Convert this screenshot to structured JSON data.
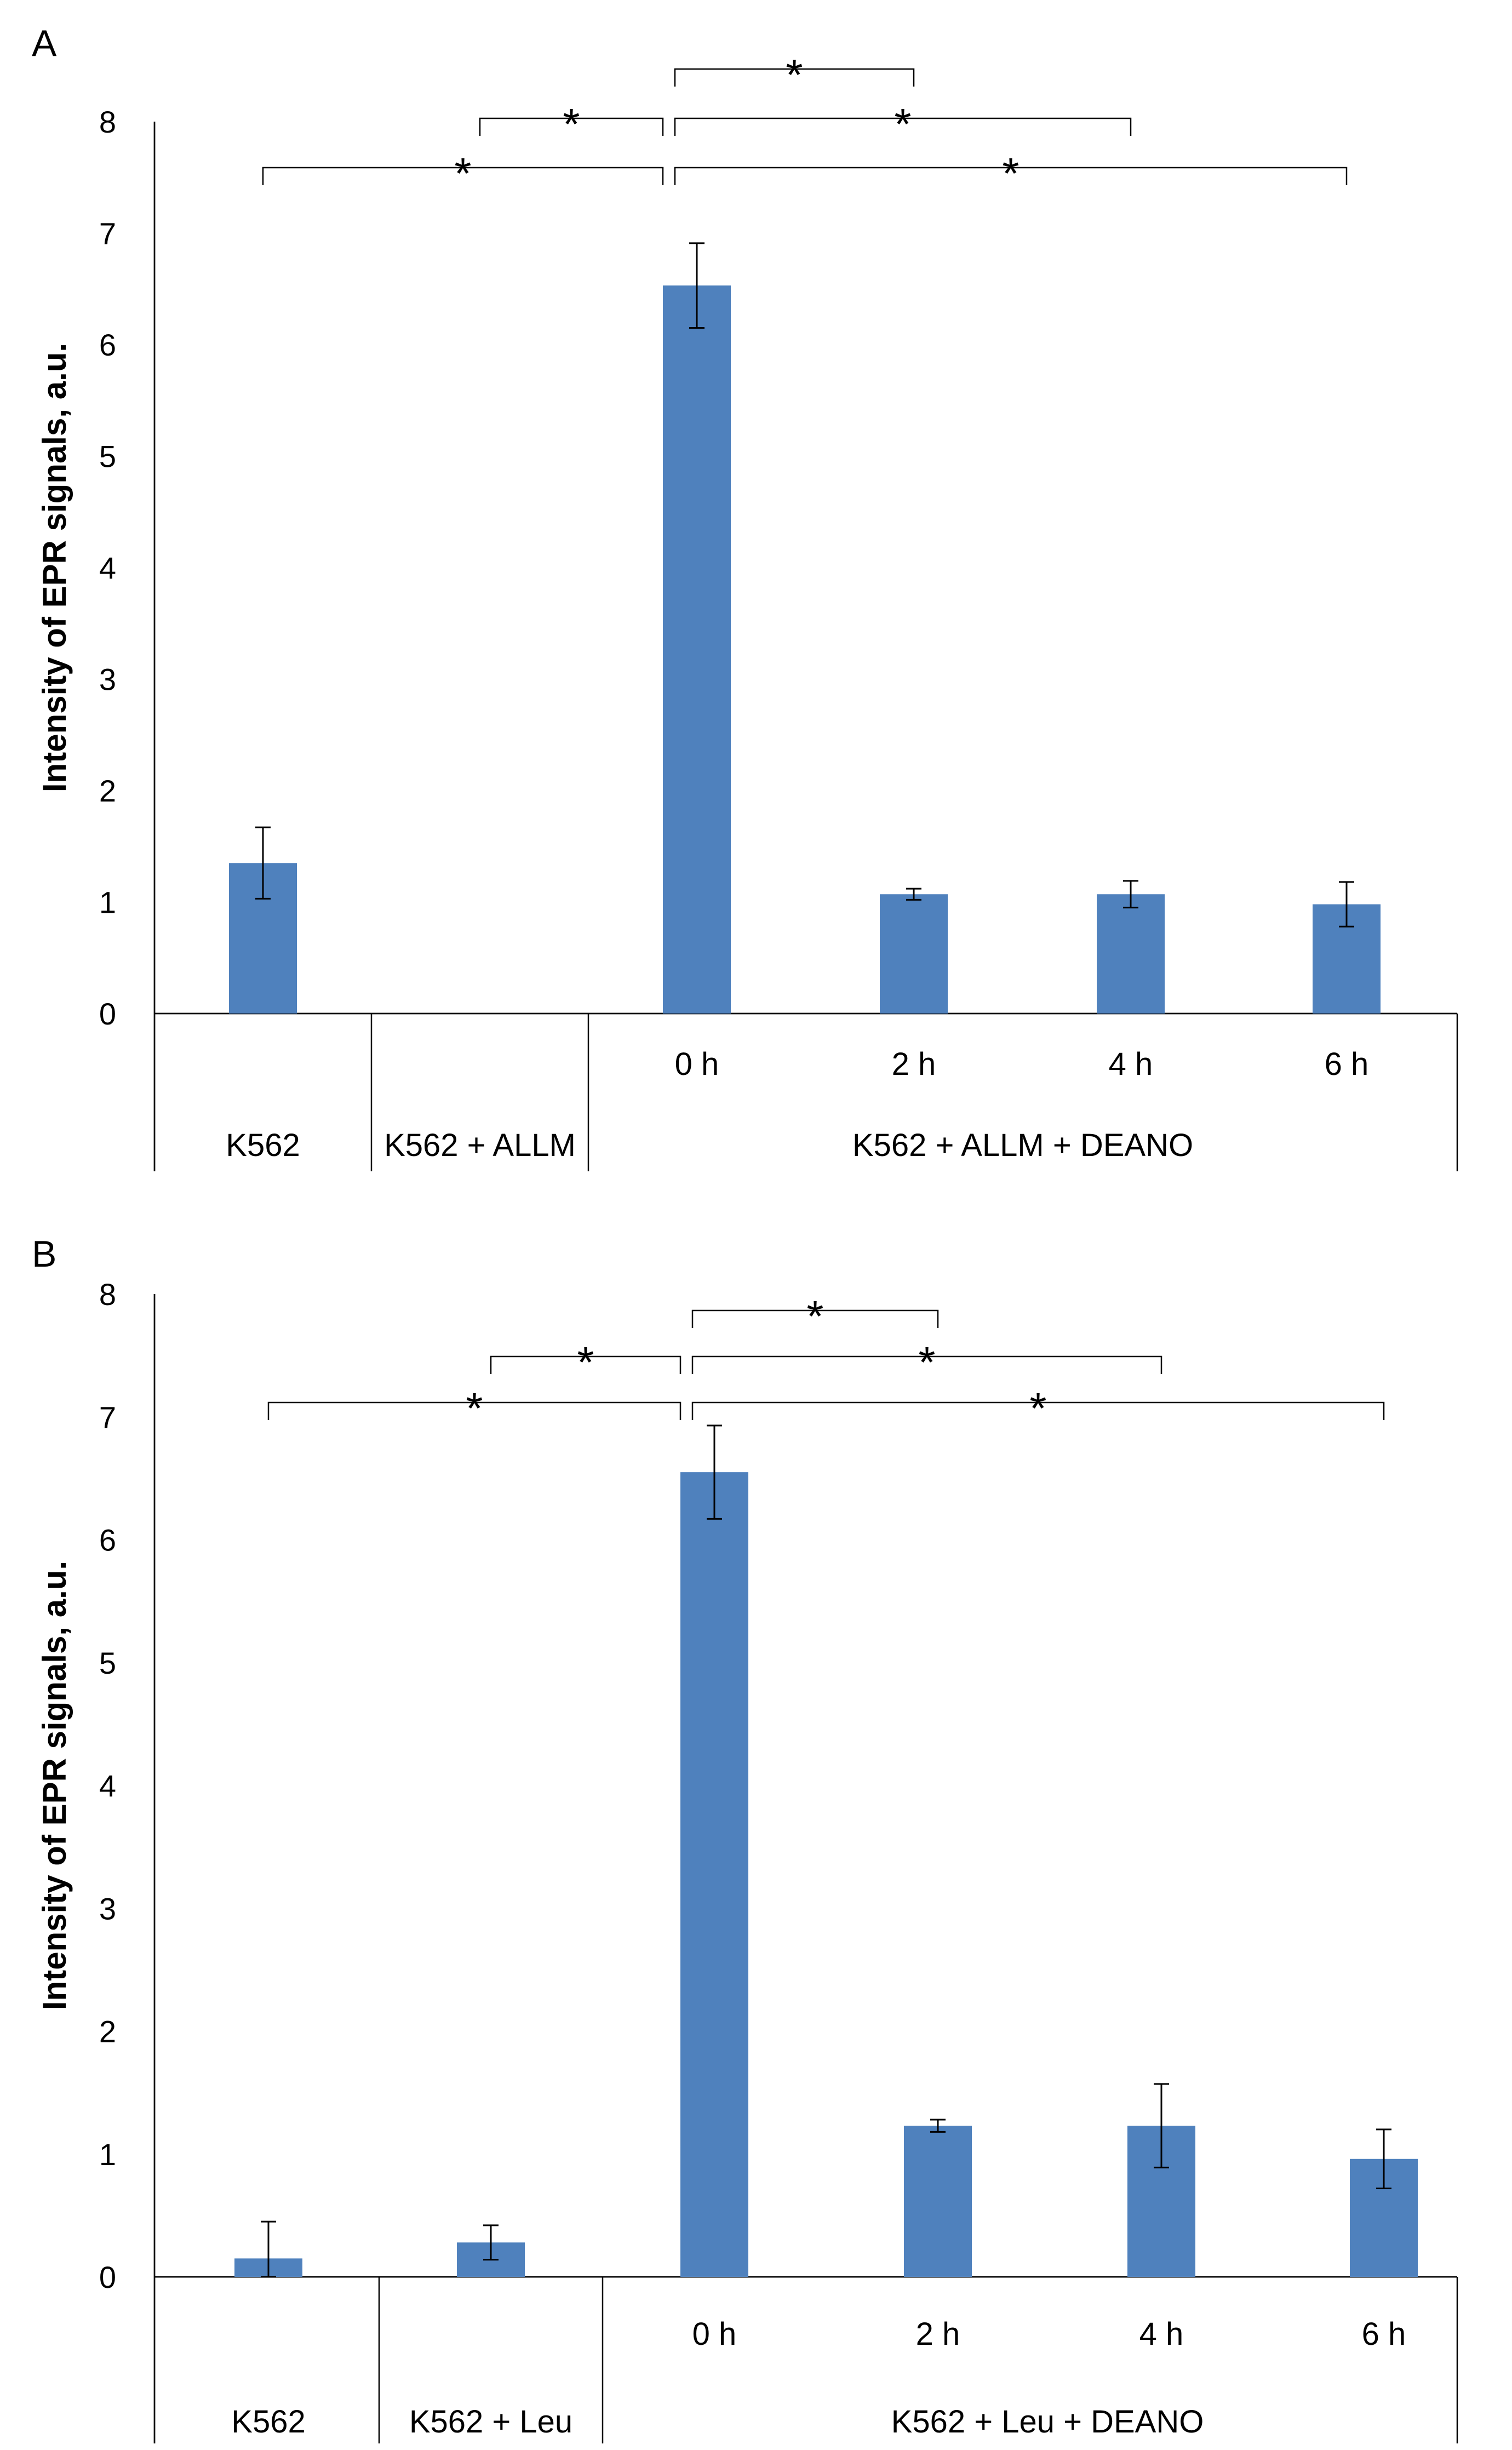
{
  "chart_data": [
    {
      "panel": "A",
      "type": "bar",
      "ylabel": "Intensity of EPR signals, a.u.",
      "ylim": [
        0,
        8
      ],
      "yticks": [
        0,
        1,
        2,
        3,
        4,
        5,
        6,
        7,
        8
      ],
      "bars": [
        {
          "group": "K562",
          "label": "",
          "value": 1.35,
          "error": 0.32
        },
        {
          "group": "K562 + ALLM",
          "label": "",
          "value": 0,
          "error": 0
        },
        {
          "group": "K562 + ALLM + DEANO",
          "label": "0 h",
          "value": 6.53,
          "error": 0.38
        },
        {
          "group": "K562 + ALLM + DEANO",
          "label": "2 h",
          "value": 1.07,
          "error": 0.05
        },
        {
          "group": "K562 + ALLM + DEANO",
          "label": "4 h",
          "value": 1.07,
          "error": 0.12
        },
        {
          "group": "K562 + ALLM + DEANO",
          "label": "6 h",
          "value": 0.98,
          "error": 0.2
        }
      ],
      "groups": [
        "K562",
        "K562 + ALLM",
        "K562 + ALLM + DEANO"
      ],
      "significance": [
        {
          "from": 0,
          "to": 2,
          "label": "*"
        },
        {
          "from": 1,
          "to": 2,
          "label": "*"
        },
        {
          "from": 2,
          "to": 3,
          "label": "*"
        },
        {
          "from": 2,
          "to": 4,
          "label": "*"
        },
        {
          "from": 2,
          "to": 5,
          "label": "*"
        }
      ]
    },
    {
      "panel": "B",
      "type": "bar",
      "ylabel": "Intensity of EPR signals, a.u.",
      "ylim": [
        0,
        8
      ],
      "yticks": [
        0,
        1,
        2,
        3,
        4,
        5,
        6,
        7,
        8
      ],
      "bars": [
        {
          "group": "K562",
          "label": "",
          "value": 0.15,
          "error": 0.3
        },
        {
          "group": "K562 + Leu",
          "label": "",
          "value": 0.28,
          "error": 0.14
        },
        {
          "group": "K562 + Leu + DEANO",
          "label": "0 h",
          "value": 6.55,
          "error": 0.38
        },
        {
          "group": "K562 + Leu + DEANO",
          "label": "2 h",
          "value": 1.23,
          "error": 0.05
        },
        {
          "group": "K562 + Leu + DEANO",
          "label": "4 h",
          "value": 1.23,
          "error": 0.34
        },
        {
          "group": "K562 + Leu + DEANO",
          "label": "6 h",
          "value": 0.96,
          "error": 0.24
        }
      ],
      "groups": [
        "K562",
        "K562 + Leu",
        "K562 + Leu + DEANO"
      ],
      "significance": [
        {
          "from": 0,
          "to": 2,
          "label": "*"
        },
        {
          "from": 1,
          "to": 2,
          "label": "*"
        },
        {
          "from": 2,
          "to": 3,
          "label": "*"
        },
        {
          "from": 2,
          "to": 4,
          "label": "*"
        },
        {
          "from": 2,
          "to": 5,
          "label": "*"
        }
      ]
    }
  ]
}
